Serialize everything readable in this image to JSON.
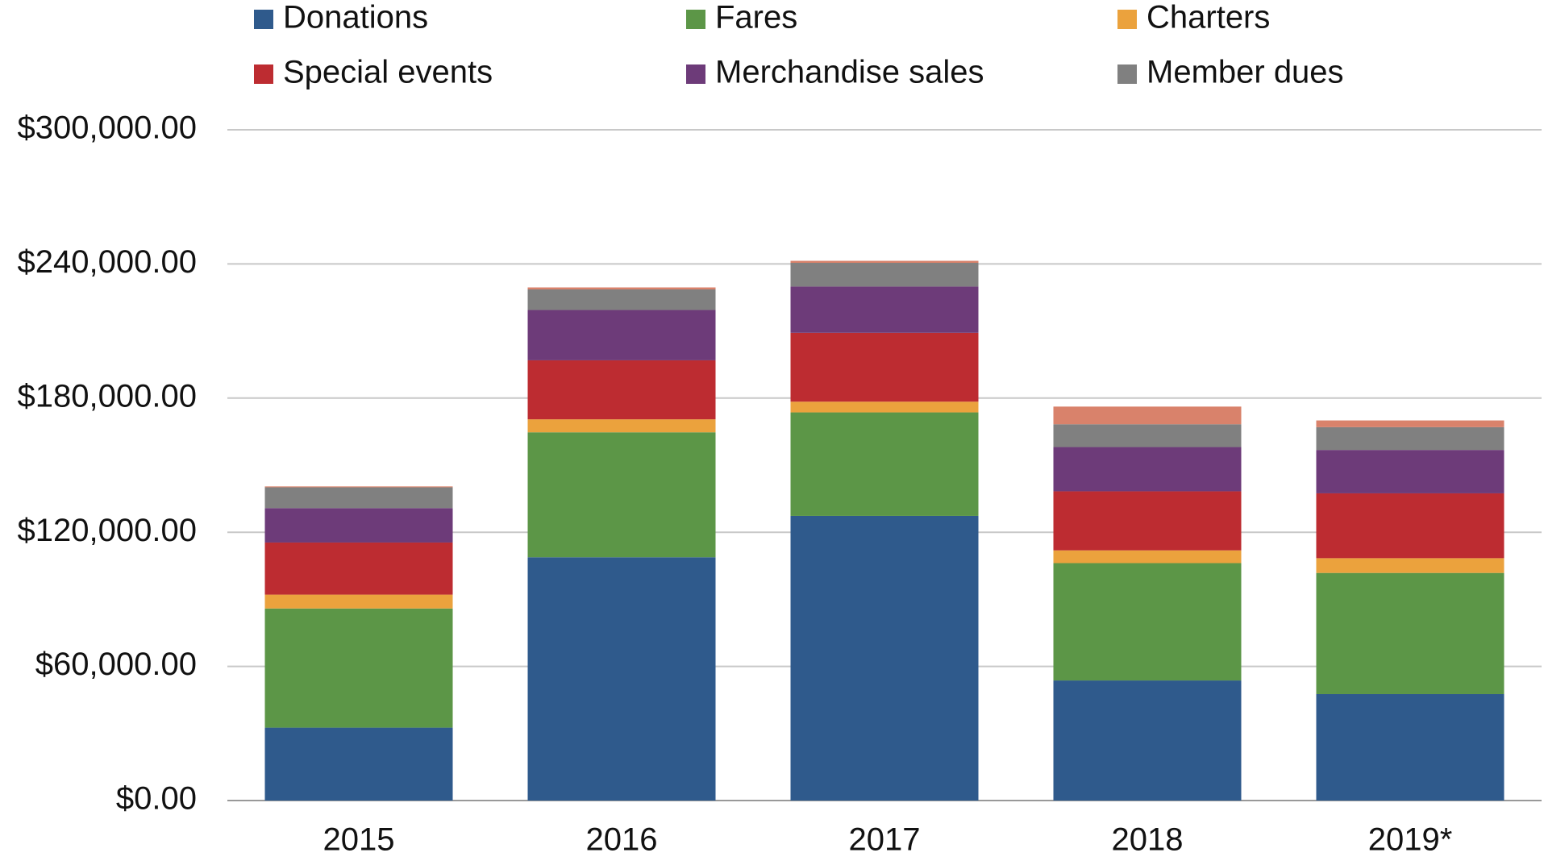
{
  "chart_data": {
    "type": "stacked_bar",
    "categories": [
      "2015",
      "2016",
      "2017",
      "2018",
      "2019*"
    ],
    "series": [
      {
        "name": "Donations",
        "color": "#2f5a8c",
        "values": [
          32600,
          108800,
          127300,
          53700,
          47600
        ]
      },
      {
        "name": "Fares",
        "color": "#5c9647",
        "values": [
          53300,
          55900,
          46300,
          52500,
          54200
        ]
      },
      {
        "name": "Charters",
        "color": "#eba23d",
        "values": [
          6200,
          5800,
          4800,
          5700,
          6600
        ]
      },
      {
        "name": "Special events",
        "color": "#bd2c31",
        "values": [
          23300,
          26400,
          30800,
          26400,
          29000
        ]
      },
      {
        "name": "Merchandise sales",
        "color": "#6d3b79",
        "values": [
          15400,
          22500,
          20700,
          19800,
          19400
        ]
      },
      {
        "name": "Member dues",
        "color": "#808080",
        "values": [
          9300,
          9200,
          10600,
          10200,
          10200
        ]
      },
      {
        "color": "#d9826b",
        "values": [
          400,
          900,
          900,
          7900,
          3000
        ]
      }
    ],
    "ylim": [
      0,
      300000
    ],
    "yticks": [
      {
        "value": 0,
        "label": "$0.00"
      },
      {
        "value": 60000,
        "label": "$60,000.00"
      },
      {
        "value": 120000,
        "label": "$120,000.00"
      },
      {
        "value": 180000,
        "label": "$180,000.00"
      },
      {
        "value": 240000,
        "label": "$240,000.00"
      },
      {
        "value": 300000,
        "label": "$300,000.00"
      }
    ],
    "grid": true
  }
}
